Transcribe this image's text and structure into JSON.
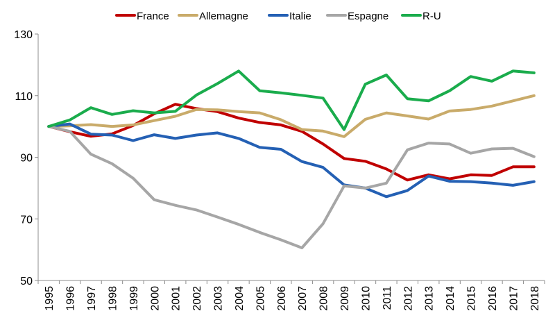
{
  "chart_data": {
    "type": "line",
    "x": [
      "1995",
      "1996",
      "1997",
      "1998",
      "1999",
      "2000",
      "2001",
      "2002",
      "2003",
      "2004",
      "2005",
      "2006",
      "2007",
      "2008",
      "2009",
      "2010",
      "2011",
      "2012",
      "2013",
      "2014",
      "2015",
      "2016",
      "2017",
      "2018"
    ],
    "ylim": [
      50,
      130
    ],
    "yticks": [
      50,
      70,
      90,
      110,
      130
    ],
    "legend_position": "top",
    "grid": false,
    "series": [
      {
        "name": "France",
        "color": "#c00000",
        "values": [
          100,
          98.3,
          96.8,
          97.6,
          100.3,
          104.1,
          107.2,
          105.8,
          104.8,
          102.7,
          101.3,
          100.5,
          98.4,
          94.3,
          89.6,
          88.7,
          86.2,
          82.6,
          84.3,
          83.0,
          84.3,
          84.1,
          86.9,
          86.9
        ]
      },
      {
        "name": "Allemagne",
        "color": "#c9ab6a",
        "values": [
          100,
          100.2,
          100.6,
          100.0,
          100.5,
          101.9,
          103.3,
          105.5,
          105.4,
          104.8,
          104.4,
          102.2,
          99.0,
          98.5,
          96.7,
          102.3,
          104.4,
          103.4,
          102.4,
          105.0,
          105.5,
          106.6,
          108.3,
          110.0
        ]
      },
      {
        "name": "Italie",
        "color": "#2460b4",
        "values": [
          100,
          100.8,
          97.5,
          97.2,
          95.4,
          97.3,
          96.1,
          97.2,
          97.9,
          96.1,
          93.2,
          92.6,
          88.6,
          86.7,
          81.0,
          80.0,
          77.2,
          79.2,
          83.9,
          82.2,
          82.1,
          81.6,
          80.9,
          82.1
        ]
      },
      {
        "name": "Espagne",
        "color": "#a6a6a6",
        "values": [
          100,
          98.4,
          91.0,
          87.9,
          83.2,
          76.2,
          74.4,
          72.9,
          70.6,
          68.2,
          65.6,
          63.2,
          60.6,
          68.4,
          80.7,
          80.0,
          81.6,
          92.4,
          94.6,
          94.3,
          91.3,
          92.7,
          92.9,
          90.2
        ]
      },
      {
        "name": "R-U",
        "color": "#1aac4c",
        "values": [
          100,
          102.1,
          106.1,
          103.9,
          105.1,
          104.4,
          104.9,
          110.2,
          113.9,
          118.0,
          111.6,
          110.9,
          110.1,
          109.2,
          99.0,
          113.7,
          116.7,
          109.0,
          108.3,
          111.6,
          116.2,
          114.7,
          118.0,
          117.4
        ]
      }
    ]
  }
}
